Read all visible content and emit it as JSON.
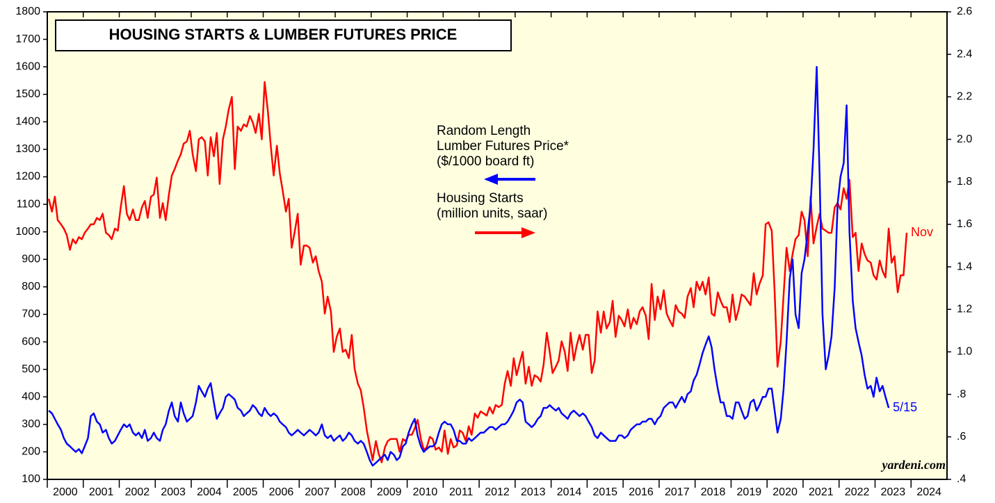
{
  "chart_data": {
    "type": "line",
    "title": "HOUSING STARTS & LUMBER FUTURES PRICE",
    "source": "yardeni.com",
    "xlim": [
      2000,
      2025
    ],
    "xticks": [
      2000,
      2001,
      2002,
      2003,
      2004,
      2005,
      2006,
      2007,
      2008,
      2009,
      2010,
      2011,
      2012,
      2013,
      2014,
      2015,
      2016,
      2017,
      2018,
      2019,
      2020,
      2021,
      2022,
      2023,
      2024
    ],
    "ylim": [
      100,
      1800
    ],
    "yticks": [
      100,
      200,
      300,
      400,
      500,
      600,
      700,
      800,
      900,
      1000,
      1100,
      1200,
      1300,
      1400,
      1500,
      1600,
      1700,
      1800
    ],
    "y2lim": [
      0.4,
      2.6
    ],
    "y2ticks": [
      {
        "value": 0.4,
        "label": ".4"
      },
      {
        "value": 0.6,
        "label": ".6"
      },
      {
        "value": 0.8,
        "label": ".8"
      },
      {
        "value": 1.0,
        "label": "1.0"
      },
      1.2,
      1.4,
      1.6,
      1.8,
      {
        "value": 2.0,
        "label": "2.0"
      },
      2.2,
      2.4,
      2.6
    ],
    "background": "#ffffe0",
    "x": [
      2000.04,
      2000.13,
      2000.21,
      2000.29,
      2000.38,
      2000.46,
      2000.54,
      2000.63,
      2000.71,
      2000.79,
      2000.88,
      2000.96,
      2001.04,
      2001.13,
      2001.21,
      2001.29,
      2001.38,
      2001.46,
      2001.54,
      2001.63,
      2001.71,
      2001.79,
      2001.88,
      2001.96,
      2002.04,
      2002.13,
      2002.21,
      2002.29,
      2002.38,
      2002.46,
      2002.54,
      2002.63,
      2002.71,
      2002.79,
      2002.88,
      2002.96,
      2003.04,
      2003.13,
      2003.21,
      2003.29,
      2003.38,
      2003.46,
      2003.54,
      2003.63,
      2003.71,
      2003.79,
      2003.88,
      2003.96,
      2004.04,
      2004.13,
      2004.21,
      2004.29,
      2004.38,
      2004.46,
      2004.54,
      2004.63,
      2004.71,
      2004.79,
      2004.88,
      2004.96,
      2005.04,
      2005.13,
      2005.21,
      2005.29,
      2005.38,
      2005.46,
      2005.54,
      2005.63,
      2005.71,
      2005.79,
      2005.88,
      2005.96,
      2006.04,
      2006.13,
      2006.21,
      2006.29,
      2006.38,
      2006.46,
      2006.54,
      2006.63,
      2006.71,
      2006.79,
      2006.88,
      2006.96,
      2007.04,
      2007.13,
      2007.21,
      2007.29,
      2007.38,
      2007.46,
      2007.54,
      2007.63,
      2007.71,
      2007.79,
      2007.88,
      2007.96,
      2008.04,
      2008.13,
      2008.21,
      2008.29,
      2008.38,
      2008.46,
      2008.54,
      2008.63,
      2008.71,
      2008.79,
      2008.88,
      2008.96,
      2009.04,
      2009.13,
      2009.21,
      2009.29,
      2009.38,
      2009.46,
      2009.54,
      2009.63,
      2009.71,
      2009.79,
      2009.88,
      2009.96,
      2010.04,
      2010.13,
      2010.21,
      2010.29,
      2010.38,
      2010.46,
      2010.54,
      2010.63,
      2010.71,
      2010.79,
      2010.88,
      2010.96,
      2011.04,
      2011.13,
      2011.21,
      2011.29,
      2011.38,
      2011.46,
      2011.54,
      2011.63,
      2011.71,
      2011.79,
      2011.88,
      2011.96,
      2012.04,
      2012.13,
      2012.21,
      2012.29,
      2012.38,
      2012.46,
      2012.54,
      2012.63,
      2012.71,
      2012.79,
      2012.88,
      2012.96,
      2013.04,
      2013.13,
      2013.21,
      2013.29,
      2013.38,
      2013.46,
      2013.54,
      2013.63,
      2013.71,
      2013.79,
      2013.88,
      2013.96,
      2014.04,
      2014.13,
      2014.21,
      2014.29,
      2014.38,
      2014.46,
      2014.54,
      2014.63,
      2014.71,
      2014.79,
      2014.88,
      2014.96,
      2015.04,
      2015.13,
      2015.21,
      2015.29,
      2015.38,
      2015.46,
      2015.54,
      2015.63,
      2015.71,
      2015.79,
      2015.88,
      2015.96,
      2016.04,
      2016.13,
      2016.21,
      2016.29,
      2016.38,
      2016.46,
      2016.54,
      2016.63,
      2016.71,
      2016.79,
      2016.88,
      2016.96,
      2017.04,
      2017.13,
      2017.21,
      2017.29,
      2017.38,
      2017.46,
      2017.54,
      2017.63,
      2017.71,
      2017.79,
      2017.88,
      2017.96,
      2018.04,
      2018.13,
      2018.21,
      2018.29,
      2018.38,
      2018.46,
      2018.54,
      2018.63,
      2018.71,
      2018.79,
      2018.88,
      2018.96,
      2019.04,
      2019.13,
      2019.21,
      2019.29,
      2019.38,
      2019.46,
      2019.54,
      2019.63,
      2019.71,
      2019.79,
      2019.88,
      2019.96,
      2020.04,
      2020.13,
      2020.21,
      2020.29,
      2020.38,
      2020.46,
      2020.54,
      2020.63,
      2020.71,
      2020.79,
      2020.88,
      2020.96,
      2021.04,
      2021.13,
      2021.21,
      2021.29,
      2021.38,
      2021.46,
      2021.54,
      2021.63,
      2021.71,
      2021.79,
      2021.88,
      2021.96,
      2022.04,
      2022.13,
      2022.21,
      2022.29,
      2022.38,
      2022.46,
      2022.54,
      2022.63,
      2022.71,
      2022.79,
      2022.88,
      2022.96,
      2023.04,
      2023.13,
      2023.21,
      2023.29,
      2023.38,
      2023.46,
      2023.54,
      2023.63,
      2023.71,
      2023.79,
      2023.88
    ],
    "series": [
      {
        "name": "Housing Starts\n(million units, saar)",
        "color": "#ff0000",
        "axis": "y2",
        "end_label": "Nov",
        "values": [
          1.72,
          1.66,
          1.73,
          1.62,
          1.6,
          1.58,
          1.55,
          1.48,
          1.53,
          1.51,
          1.54,
          1.53,
          1.56,
          1.58,
          1.6,
          1.6,
          1.63,
          1.62,
          1.65,
          1.56,
          1.55,
          1.53,
          1.58,
          1.57,
          1.68,
          1.78,
          1.65,
          1.62,
          1.67,
          1.62,
          1.62,
          1.68,
          1.71,
          1.63,
          1.73,
          1.74,
          1.82,
          1.63,
          1.7,
          1.62,
          1.74,
          1.83,
          1.86,
          1.9,
          1.93,
          1.98,
          1.99,
          2.04,
          1.93,
          1.85,
          2.0,
          2.01,
          1.99,
          1.83,
          2.01,
          1.92,
          2.03,
          1.79,
          2.0,
          2.06,
          2.14,
          2.2,
          1.86,
          2.06,
          2.04,
          2.07,
          2.06,
          2.11,
          2.08,
          2.03,
          2.12,
          2.0,
          2.27,
          2.13,
          1.97,
          1.83,
          1.97,
          1.84,
          1.76,
          1.66,
          1.72,
          1.49,
          1.57,
          1.65,
          1.41,
          1.5,
          1.5,
          1.49,
          1.42,
          1.45,
          1.38,
          1.33,
          1.18,
          1.26,
          1.19,
          1.0,
          1.07,
          1.11,
          1.0,
          1.01,
          0.97,
          1.08,
          0.92,
          0.85,
          0.82,
          0.74,
          0.63,
          0.56,
          0.49,
          0.58,
          0.52,
          0.48,
          0.55,
          0.58,
          0.59,
          0.59,
          0.59,
          0.53,
          0.59,
          0.58,
          0.61,
          0.61,
          0.64,
          0.68,
          0.59,
          0.54,
          0.55,
          0.6,
          0.59,
          0.54,
          0.55,
          0.53,
          0.63,
          0.52,
          0.59,
          0.55,
          0.56,
          0.63,
          0.62,
          0.58,
          0.65,
          0.61,
          0.71,
          0.69,
          0.72,
          0.71,
          0.7,
          0.74,
          0.71,
          0.75,
          0.74,
          0.75,
          0.85,
          0.91,
          0.84,
          0.97,
          0.89,
          0.95,
          1.0,
          0.85,
          0.93,
          0.84,
          0.89,
          0.88,
          0.86,
          0.94,
          1.09,
          1.0,
          0.9,
          0.93,
          0.96,
          1.05,
          1.0,
          0.91,
          1.09,
          0.96,
          1.03,
          1.08,
          1.01,
          1.08,
          1.08,
          0.9,
          0.96,
          1.19,
          1.09,
          1.19,
          1.11,
          1.14,
          1.24,
          1.07,
          1.17,
          1.15,
          1.12,
          1.2,
          1.11,
          1.16,
          1.13,
          1.19,
          1.21,
          1.17,
          1.06,
          1.32,
          1.15,
          1.26,
          1.2,
          1.29,
          1.18,
          1.15,
          1.12,
          1.22,
          1.19,
          1.18,
          1.16,
          1.26,
          1.3,
          1.21,
          1.33,
          1.29,
          1.33,
          1.27,
          1.35,
          1.18,
          1.17,
          1.28,
          1.24,
          1.21,
          1.21,
          1.14,
          1.27,
          1.15,
          1.2,
          1.27,
          1.26,
          1.24,
          1.22,
          1.37,
          1.27,
          1.32,
          1.36,
          1.6,
          1.61,
          1.57,
          1.28,
          0.93,
          1.05,
          1.27,
          1.49,
          1.38,
          1.46,
          1.53,
          1.55,
          1.66,
          1.62,
          1.45,
          1.73,
          1.51,
          1.59,
          1.65,
          1.58,
          1.57,
          1.56,
          1.56,
          1.68,
          1.7,
          1.67,
          1.77,
          1.72,
          1.81,
          1.54,
          1.56,
          1.38,
          1.51,
          1.46,
          1.43,
          1.42,
          1.36,
          1.34,
          1.43,
          1.38,
          1.35,
          1.58,
          1.42,
          1.45,
          1.28,
          1.36,
          1.36,
          1.56
        ]
      },
      {
        "name": "Random Length\nLumber Futures Price*\n ($/1000 board ft)",
        "color": "#0000ff",
        "axis": "y",
        "end_label": "5/15",
        "values": [
          350,
          340,
          320,
          300,
          280,
          250,
          230,
          220,
          210,
          200,
          210,
          195,
          220,
          250,
          330,
          340,
          310,
          300,
          270,
          280,
          250,
          230,
          240,
          260,
          280,
          300,
          290,
          300,
          270,
          260,
          270,
          250,
          280,
          240,
          250,
          270,
          250,
          240,
          280,
          300,
          350,
          380,
          330,
          310,
          380,
          340,
          310,
          320,
          330,
          380,
          440,
          420,
          400,
          430,
          450,
          380,
          320,
          340,
          360,
          400,
          410,
          400,
          390,
          360,
          350,
          330,
          340,
          350,
          370,
          360,
          340,
          330,
          360,
          340,
          330,
          340,
          330,
          310,
          300,
          290,
          270,
          260,
          270,
          280,
          270,
          260,
          270,
          280,
          270,
          260,
          270,
          300,
          260,
          250,
          260,
          240,
          250,
          260,
          240,
          250,
          270,
          260,
          240,
          230,
          240,
          230,
          200,
          170,
          150,
          160,
          170,
          180,
          190,
          170,
          200,
          190,
          170,
          180,
          220,
          230,
          270,
          300,
          320,
          260,
          220,
          200,
          210,
          220,
          220,
          230,
          270,
          300,
          310,
          300,
          300,
          280,
          240,
          240,
          230,
          230,
          250,
          240,
          250,
          260,
          270,
          270,
          280,
          290,
          290,
          280,
          290,
          300,
          300,
          310,
          330,
          350,
          380,
          390,
          380,
          310,
          300,
          290,
          300,
          320,
          330,
          360,
          360,
          370,
          360,
          350,
          360,
          340,
          330,
          320,
          340,
          350,
          340,
          330,
          340,
          330,
          310,
          290,
          260,
          250,
          270,
          260,
          250,
          240,
          240,
          240,
          260,
          260,
          250,
          260,
          280,
          290,
          300,
          300,
          310,
          310,
          320,
          320,
          300,
          320,
          330,
          360,
          370,
          380,
          380,
          360,
          380,
          400,
          380,
          410,
          420,
          460,
          480,
          520,
          560,
          590,
          620,
          580,
          500,
          430,
          380,
          380,
          330,
          330,
          320,
          380,
          380,
          350,
          320,
          330,
          380,
          390,
          350,
          370,
          400,
          400,
          430,
          430,
          350,
          270,
          320,
          430,
          600,
          830,
          900,
          700,
          650,
          850,
          900,
          1000,
          1100,
          1300,
          1600,
          1200,
          700,
          500,
          550,
          620,
          800,
          1100,
          1200,
          1250,
          1460,
          1000,
          750,
          650,
          600,
          550,
          480,
          430,
          440,
          400,
          470,
          420,
          440,
          400,
          360,
          null,
          null,
          null,
          null,
          null,
          null
        ]
      }
    ]
  }
}
